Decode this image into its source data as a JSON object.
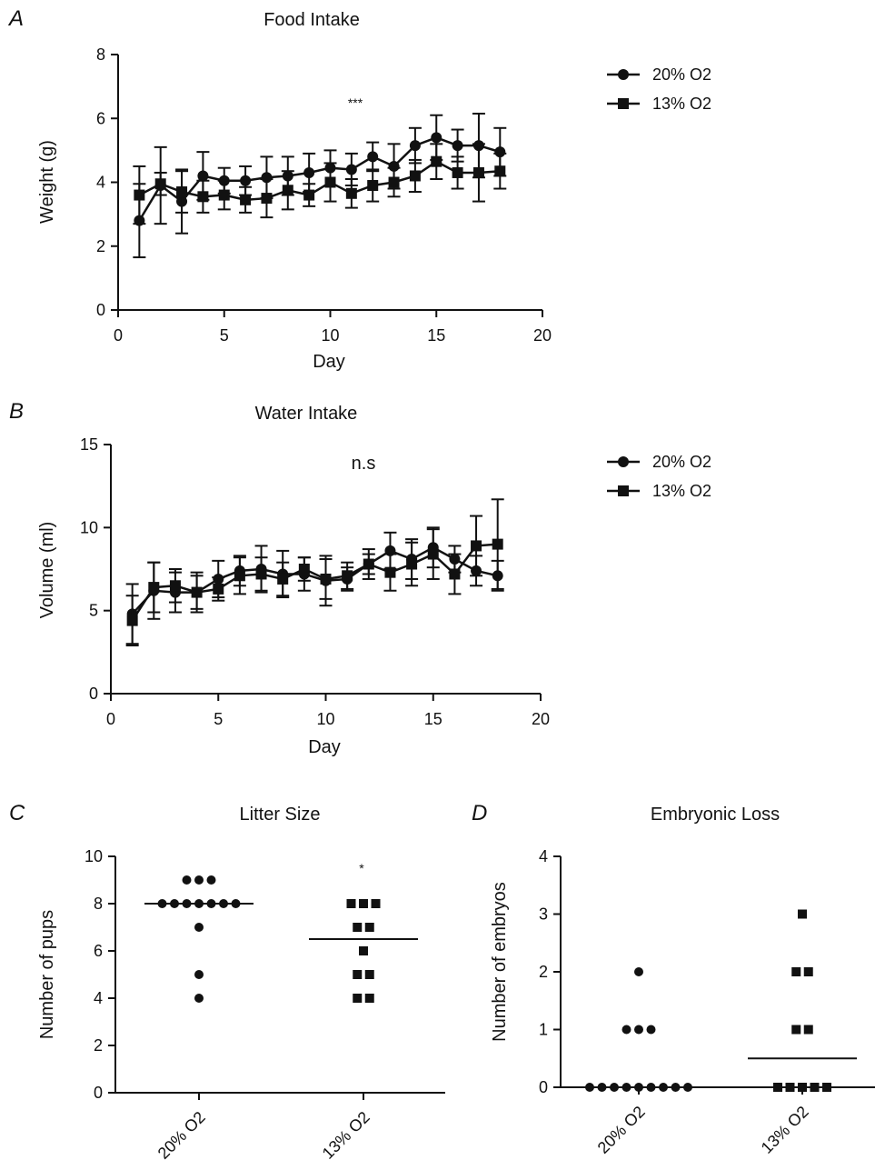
{
  "chart_data": [
    {
      "panel": "A",
      "type": "line",
      "title": "Food Intake",
      "xlabel": "Day",
      "ylabel": "Weight (g)",
      "xlim": [
        0,
        20
      ],
      "ylim": [
        0,
        8
      ],
      "xticks": [
        0,
        5,
        10,
        15,
        20
      ],
      "yticks": [
        0,
        2,
        4,
        6,
        8
      ],
      "annotation": "***",
      "legend": "right",
      "x": [
        1,
        2,
        3,
        4,
        5,
        6,
        7,
        8,
        9,
        10,
        11,
        12,
        13,
        14,
        15,
        16,
        17,
        18
      ],
      "series": [
        {
          "name": "20% O2",
          "marker": "circle",
          "values": [
            2.8,
            3.9,
            3.4,
            4.2,
            4.05,
            4.05,
            4.15,
            4.2,
            4.3,
            4.45,
            4.4,
            4.8,
            4.5,
            5.15,
            5.4,
            5.15,
            5.15,
            4.95
          ],
          "errors": [
            1.15,
            1.2,
            1.0,
            0.75,
            0.4,
            0.45,
            0.65,
            0.6,
            0.6,
            0.55,
            0.5,
            0.45,
            0.7,
            0.55,
            0.7,
            0.5,
            1.0,
            0.75
          ]
        },
        {
          "name": "13% O2",
          "marker": "square",
          "values": [
            3.6,
            3.95,
            3.7,
            3.55,
            3.6,
            3.45,
            3.5,
            3.75,
            3.6,
            4.0,
            3.65,
            3.9,
            4.0,
            4.2,
            4.65,
            4.3,
            4.3,
            4.35
          ],
          "errors": [
            0.9,
            0.35,
            0.65,
            0.5,
            0.45,
            0.4,
            0.6,
            0.6,
            0.35,
            0.6,
            0.45,
            0.5,
            0.45,
            0.5,
            0.55,
            0.5,
            0.9,
            0.55
          ]
        }
      ]
    },
    {
      "panel": "B",
      "type": "line",
      "title": "Water Intake",
      "xlabel": "Day",
      "ylabel": "Volume (ml)",
      "xlim": [
        0,
        20
      ],
      "ylim": [
        0,
        15
      ],
      "xticks": [
        0,
        5,
        10,
        15,
        20
      ],
      "yticks": [
        0,
        5,
        10,
        15
      ],
      "annotation": "n.s",
      "legend": "right",
      "x": [
        1,
        2,
        3,
        4,
        5,
        6,
        7,
        8,
        9,
        10,
        11,
        12,
        13,
        14,
        15,
        16,
        17,
        18
      ],
      "series": [
        {
          "name": "20% O2",
          "marker": "circle",
          "values": [
            4.8,
            6.2,
            6.1,
            6.1,
            6.9,
            7.4,
            7.5,
            7.2,
            7.2,
            6.8,
            6.9,
            7.8,
            8.6,
            8.1,
            8.8,
            8.1,
            7.4,
            7.1
          ],
          "errors": [
            1.8,
            1.7,
            1.2,
            1.0,
            1.1,
            0.9,
            1.4,
            1.4,
            1.0,
            1.5,
            0.7,
            0.9,
            1.1,
            1.2,
            1.2,
            0.8,
            0.9,
            0.9
          ]
        },
        {
          "name": "13% O2",
          "marker": "square",
          "values": [
            4.4,
            6.4,
            6.5,
            6.1,
            6.3,
            7.1,
            7.2,
            6.9,
            7.5,
            6.9,
            7.1,
            7.8,
            7.3,
            7.8,
            8.4,
            7.2,
            8.9,
            9.0
          ],
          "errors": [
            1.5,
            1.5,
            1.0,
            1.2,
            0.7,
            1.1,
            1.0,
            1.0,
            0.7,
            1.2,
            0.8,
            0.6,
            1.1,
            1.3,
            1.5,
            1.2,
            1.8,
            2.7
          ]
        }
      ]
    },
    {
      "panel": "C",
      "type": "scatter",
      "title": "Litter Size",
      "xlabel": "",
      "ylabel": "Number of pups",
      "ylim": [
        0,
        10
      ],
      "yticks": [
        0,
        2,
        4,
        6,
        8,
        10
      ],
      "categories": [
        "20% O2",
        "13% O2"
      ],
      "annotation": "*",
      "series": [
        {
          "name": "20% O2",
          "marker": "circle",
          "values": [
            9,
            9,
            9,
            8,
            8,
            8,
            8,
            8,
            8,
            8,
            7,
            5,
            4
          ],
          "mean": 8
        },
        {
          "name": "13% O2",
          "marker": "square",
          "values": [
            8,
            8,
            8,
            7,
            7,
            6,
            5,
            5,
            4,
            4
          ],
          "mean": 6.5
        }
      ]
    },
    {
      "panel": "D",
      "type": "scatter",
      "title": "Embryonic Loss",
      "xlabel": "",
      "ylabel": "Number of embryos",
      "ylim": [
        0,
        4
      ],
      "yticks": [
        0,
        1,
        2,
        3,
        4
      ],
      "categories": [
        "20% O2",
        "13% O2"
      ],
      "series": [
        {
          "name": "20% O2",
          "marker": "circle",
          "values": [
            2,
            1,
            1,
            1,
            0,
            0,
            0,
            0,
            0,
            0,
            0,
            0,
            0
          ],
          "mean": 0
        },
        {
          "name": "13% O2",
          "marker": "square",
          "values": [
            3,
            2,
            2,
            1,
            1,
            0,
            0,
            0,
            0,
            0
          ],
          "mean": 0.5
        }
      ]
    }
  ]
}
